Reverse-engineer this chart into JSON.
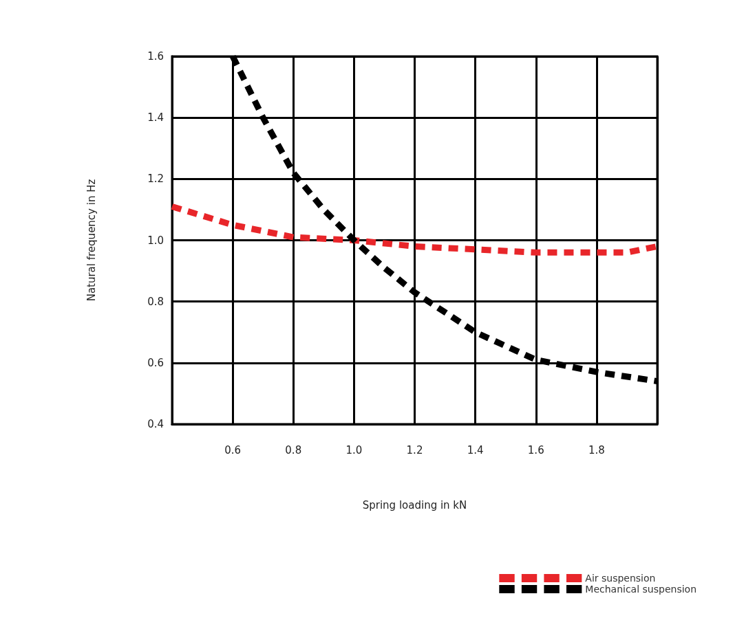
{
  "chart_data": {
    "type": "line",
    "xlabel": "Spring loading in kN",
    "ylabel": "Natural frequency in Hz",
    "series": [
      {
        "name": "Air suspension",
        "color": "#e8262a",
        "x": [
          0.4,
          0.5,
          0.6,
          0.7,
          0.8,
          1.0,
          1.2,
          1.4,
          1.6,
          1.8,
          1.9,
          2.0
        ],
        "values": [
          1.11,
          1.08,
          1.05,
          1.03,
          1.01,
          1.0,
          0.98,
          0.97,
          0.96,
          0.96,
          0.96,
          0.98
        ]
      },
      {
        "name": "Mechanical suspension",
        "color": "#000000",
        "x": [
          0.6,
          0.7,
          0.8,
          0.9,
          1.0,
          1.1,
          1.2,
          1.4,
          1.6,
          1.8,
          2.0
        ],
        "values": [
          1.6,
          1.4,
          1.22,
          1.1,
          1.0,
          0.91,
          0.83,
          0.7,
          0.61,
          0.57,
          0.54
        ]
      }
    ],
    "xlim": [
      0.4,
      2.0
    ],
    "xticks": [
      {
        "value": 0.4,
        "label": null
      },
      0.6,
      0.8,
      {
        "value": 1.0,
        "label": "1.0"
      },
      1.2,
      1.4,
      1.6,
      1.8,
      {
        "value": 2.0,
        "label": null
      }
    ],
    "ylim": [
      0.4,
      1.6
    ],
    "yticks": [
      0.4,
      0.6,
      0.8,
      {
        "value": 1.0,
        "label": "1.0"
      },
      1.2,
      1.4,
      1.6
    ],
    "grid": true,
    "legend": "bottom right",
    "line_style": "dashed"
  }
}
